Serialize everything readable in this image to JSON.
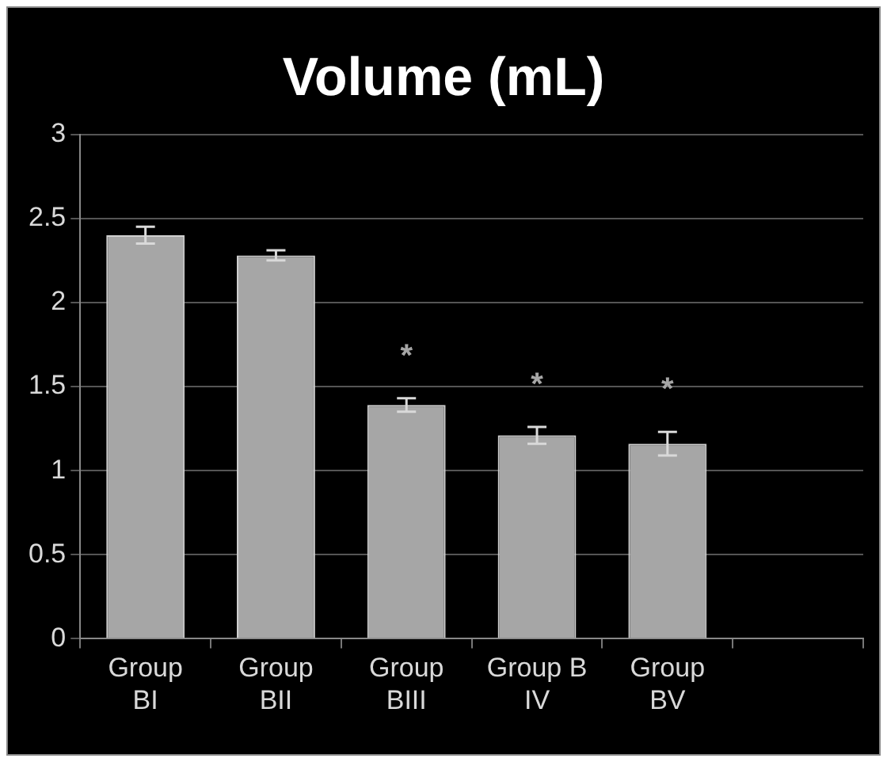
{
  "chart_data": {
    "type": "bar",
    "title": "Volume (mL)",
    "categories": [
      "Group BI",
      "Group BII",
      "Group BIII",
      "Group B IV",
      "Group BV",
      null
    ],
    "values": [
      2.4,
      2.28,
      1.39,
      1.21,
      1.16,
      null
    ],
    "errors": [
      0.05,
      0.03,
      0.04,
      0.05,
      0.07,
      null
    ],
    "color": "#a6a6a6",
    "ylim": [
      0,
      3
    ],
    "yticks": [
      0,
      0.5,
      1,
      1.5,
      2,
      2.5,
      3
    ],
    "grid": "y",
    "annotations": [
      "*",
      "*",
      "*"
    ]
  }
}
